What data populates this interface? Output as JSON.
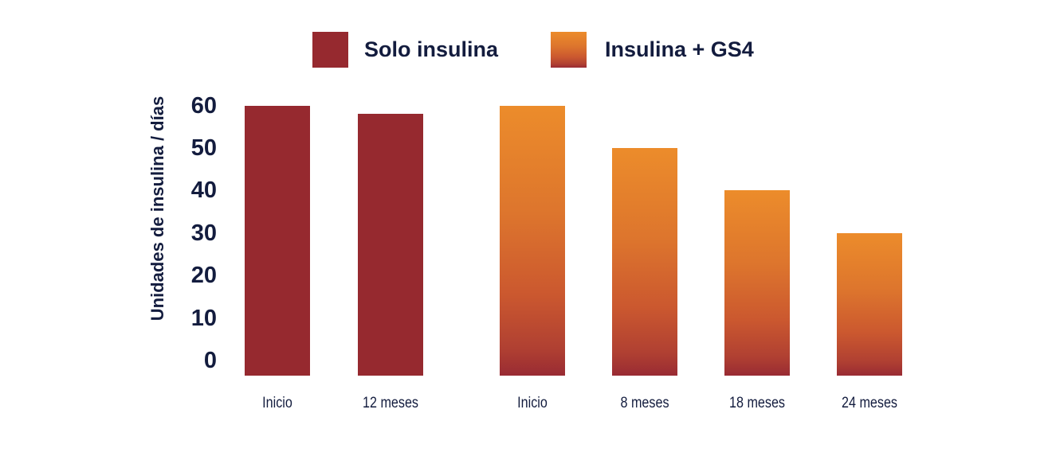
{
  "colors": {
    "text_navy": "#131c3e",
    "solid_red": "#96292f",
    "orange_gradient_stops": [
      "#ec8c2b",
      "#dd752d",
      "#cb582f",
      "#b04032",
      "#992b33"
    ]
  },
  "legend": {
    "items": [
      {
        "label": "Solo insulina",
        "swatch_style": "solid-red"
      },
      {
        "label": "Insulina + GS4",
        "swatch_style": "orange-gradient"
      }
    ]
  },
  "chart_data": {
    "type": "bar",
    "title": "",
    "ylabel": "Unidades de insulina / días",
    "xlabel": "",
    "ylim": [
      0,
      60
    ],
    "yticks": [
      60,
      50,
      40,
      30,
      20,
      10,
      0
    ],
    "grid": false,
    "legend_position": "top",
    "categories": [
      "Inicio",
      "12 meses",
      "Inicio",
      "8 meses",
      "18 meses",
      "24 meses"
    ],
    "series": [
      {
        "name": "Solo insulina",
        "style": "solid-red",
        "points": [
          {
            "x": "Inicio",
            "y": 60
          },
          {
            "x": "12 meses",
            "y": 58
          }
        ]
      },
      {
        "name": "Insulina + GS4",
        "style": "orange-gradient",
        "points": [
          {
            "x": "Inicio",
            "y": 60
          },
          {
            "x": "8 meses",
            "y": 50
          },
          {
            "x": "18 meses",
            "y": 40
          },
          {
            "x": "24 meses",
            "y": 30
          }
        ]
      }
    ]
  }
}
